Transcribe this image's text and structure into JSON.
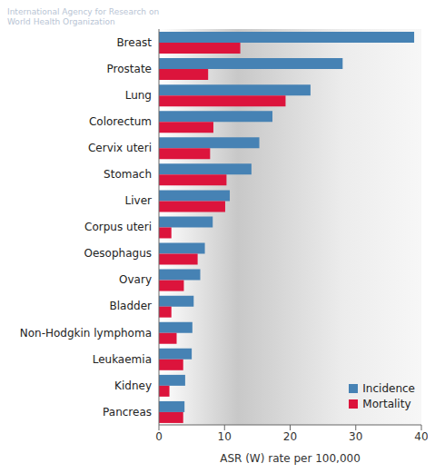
{
  "chart_data": {
    "type": "bar",
    "orientation": "horizontal",
    "annotations": [
      "International Agency for Research on",
      "World Health Organization"
    ],
    "x_label": "ASR (W) rate per 100,000",
    "categories": [
      "Breast",
      "Prostate",
      "Lung",
      "Colorectum",
      "Cervix uteri",
      "Stomach",
      "Liver",
      "Corpus uteri",
      "Oesophagus",
      "Ovary",
      "Bladder",
      "Non-Hodgkin lymphoma",
      "Leukaemia",
      "Kidney",
      "Pancreas"
    ],
    "series": [
      {
        "name": "Incidence",
        "color": "#4682b4",
        "values": [
          38.9,
          28.0,
          23.1,
          17.3,
          15.3,
          14.1,
          10.8,
          8.2,
          7.0,
          6.3,
          5.3,
          5.1,
          5.0,
          4.0,
          3.9
        ]
      },
      {
        "name": "Mortality",
        "color": "#dc143c",
        "values": [
          12.4,
          7.5,
          19.3,
          8.3,
          7.8,
          10.3,
          10.1,
          1.9,
          5.9,
          3.8,
          1.9,
          2.7,
          3.7,
          1.6,
          3.7
        ]
      }
    ],
    "xlim": [
      0,
      40
    ],
    "xticks": [
      0,
      10,
      20,
      30,
      40
    ],
    "grid": false,
    "legend": "lower right"
  }
}
